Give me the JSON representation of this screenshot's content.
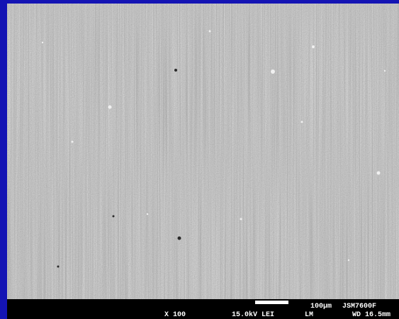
{
  "micrograph": {
    "scale_bar": "100µm",
    "instrument": "JSM7600F",
    "magnification": "X 100",
    "voltage_detector": "15.0kV LEI",
    "mode": "LM",
    "working_distance": "WD 16.5mm"
  }
}
